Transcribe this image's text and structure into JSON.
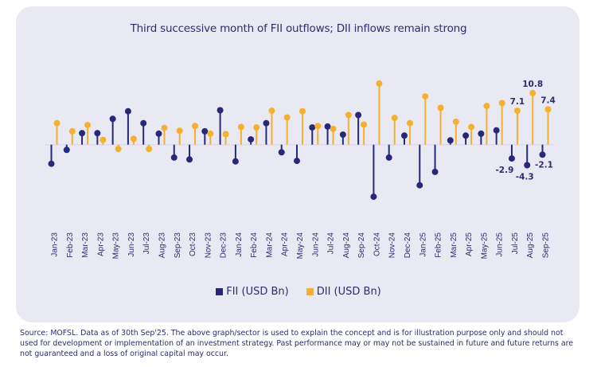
{
  "chart_data": {
    "type": "lollipop",
    "title": "Third successive month of FII outflows; DII inflows remain strong",
    "xlabel": "",
    "ylabel": "",
    "ylim": [
      -11,
      13
    ],
    "grid": false,
    "legend_position": "bottom-center",
    "categories": [
      "Jan-23",
      "Feb-23",
      "Mar-23",
      "Apr-23",
      "May-23",
      "Jun-23",
      "Jul-23",
      "Aug-23",
      "Sep-23",
      "Oct-23",
      "Nov-23",
      "Dec-23",
      "Jan-24",
      "Feb-24",
      "Mar-24",
      "Apr-24",
      "May-24",
      "Jun-24",
      "Jul-24",
      "Aug-24",
      "Sep-24",
      "Oct-24",
      "Nov-24",
      "Dec-24",
      "Jan-25",
      "Feb-25",
      "Mar-25",
      "Apr-25",
      "May-25",
      "Jun-25",
      "Jul-25",
      "Aug-25",
      "Sep-25"
    ],
    "series": [
      {
        "name": "FII (USD Bn)",
        "color": "#28287a",
        "values": [
          -4.0,
          -1.1,
          2.4,
          2.4,
          5.4,
          7.0,
          4.5,
          2.3,
          -2.7,
          -3.1,
          2.8,
          7.2,
          -3.5,
          1.1,
          4.5,
          -1.6,
          -3.4,
          3.6,
          3.8,
          2.1,
          6.2,
          -10.9,
          -2.7,
          1.9,
          -8.5,
          -5.7,
          0.9,
          1.9,
          2.3,
          3.0,
          -2.9,
          -4.3,
          -2.1
        ]
      },
      {
        "name": "DII (USD Bn)",
        "color": "#f5b02e",
        "values": [
          4.5,
          2.8,
          4.1,
          1.0,
          -0.9,
          1.2,
          -0.9,
          3.5,
          2.9,
          3.9,
          2.3,
          2.2,
          3.7,
          3.6,
          7.1,
          5.7,
          7.0,
          3.9,
          3.3,
          6.2,
          4.2,
          12.8,
          5.6,
          4.5,
          10.1,
          7.7,
          4.8,
          3.7,
          8.1,
          8.7,
          7.1,
          10.8,
          7.4
        ]
      }
    ],
    "data_labels": [
      {
        "series": "DII (USD Bn)",
        "category": "Jul-25",
        "text": "7.1"
      },
      {
        "series": "DII (USD Bn)",
        "category": "Aug-25",
        "text": "10.8"
      },
      {
        "series": "DII (USD Bn)",
        "category": "Sep-25",
        "text": "7.4"
      },
      {
        "series": "FII (USD Bn)",
        "category": "Jul-25",
        "text": "-2.9"
      },
      {
        "series": "FII (USD Bn)",
        "category": "Aug-25",
        "text": "-4.3"
      },
      {
        "series": "FII (USD Bn)",
        "category": "Sep-25",
        "text": "-2.1"
      }
    ]
  },
  "legend": {
    "fii_label": "FII (USD Bn)",
    "dii_label": "DII (USD Bn)"
  },
  "footer": {
    "disclaimer": "Source: MOFSL. Data as of 30th Sep'25. The above graph/sector is used to explain the concept and is for illustration purpose only and should not used for development or implementation of an investment strategy. Past performance may or may not be sustained in future and future returns are not guaranteed and a loss of original capital may occur."
  }
}
